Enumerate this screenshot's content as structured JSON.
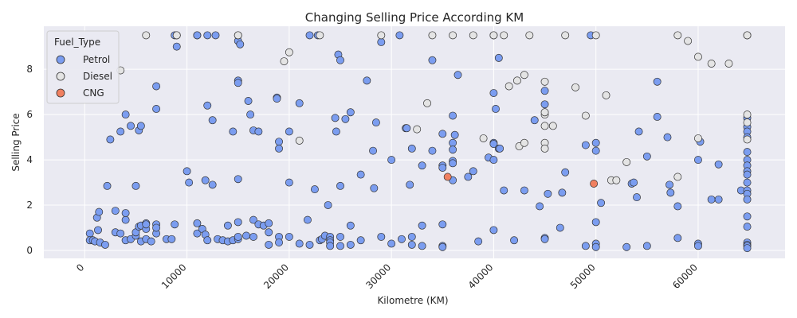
{
  "chart_data": {
    "type": "scatter",
    "title": "Changing Selling Price According KM",
    "xlabel": "Kilometre (KM)",
    "ylabel": "Selling Price",
    "xlim": [
      -4000,
      68500
    ],
    "ylim": [
      -0.35,
      9.9
    ],
    "xticks": [
      0,
      10000,
      20000,
      30000,
      40000,
      50000,
      60000
    ],
    "yticks": [
      0,
      2,
      4,
      6,
      8
    ],
    "grid": true,
    "legend": {
      "title": "Fuel_Type",
      "position": "top-left"
    },
    "series": [
      {
        "name": "Petrol",
        "color": "#7b9df0",
        "points": [
          [
            500,
            0.75
          ],
          [
            500,
            0.45
          ],
          [
            800,
            0.45
          ],
          [
            1000,
            0.4
          ],
          [
            1200,
            1.45
          ],
          [
            1300,
            0.9
          ],
          [
            1400,
            1.7
          ],
          [
            1500,
            0.35
          ],
          [
            2000,
            0.25
          ],
          [
            2200,
            2.85
          ],
          [
            2500,
            4.9
          ],
          [
            3000,
            1.75
          ],
          [
            3000,
            0.8
          ],
          [
            3500,
            0.75
          ],
          [
            3500,
            5.25
          ],
          [
            4000,
            6.0
          ],
          [
            4000,
            0.45
          ],
          [
            4000,
            1.35
          ],
          [
            4000,
            1.65
          ],
          [
            4500,
            0.5
          ],
          [
            4500,
            5.5
          ],
          [
            5000,
            0.65
          ],
          [
            5000,
            0.8
          ],
          [
            5000,
            2.85
          ],
          [
            5300,
            5.3
          ],
          [
            5300,
            1.05
          ],
          [
            5500,
            5.5
          ],
          [
            5500,
            1.1
          ],
          [
            5500,
            0.4
          ],
          [
            6000,
            0.95
          ],
          [
            6000,
            1.2
          ],
          [
            6000,
            1.15
          ],
          [
            6000,
            0.5
          ],
          [
            6500,
            0.4
          ],
          [
            7000,
            7.25
          ],
          [
            7000,
            6.25
          ],
          [
            7000,
            1.15
          ],
          [
            7000,
            0.75
          ],
          [
            7000,
            1.0
          ],
          [
            8000,
            0.5
          ],
          [
            8500,
            0.5
          ],
          [
            8800,
            9.5
          ],
          [
            8800,
            1.15
          ],
          [
            9000,
            9.0
          ],
          [
            9000,
            9.5
          ],
          [
            10000,
            3.5
          ],
          [
            10200,
            3.0
          ],
          [
            11000,
            9.5
          ],
          [
            11000,
            9.5
          ],
          [
            11000,
            1.2
          ],
          [
            11000,
            0.75
          ],
          [
            11500,
            0.95
          ],
          [
            11800,
            0.7
          ],
          [
            11800,
            3.1
          ],
          [
            12000,
            9.5
          ],
          [
            12000,
            0.45
          ],
          [
            12000,
            6.4
          ],
          [
            12500,
            2.9
          ],
          [
            12500,
            5.75
          ],
          [
            12800,
            9.5
          ],
          [
            13000,
            0.5
          ],
          [
            13500,
            0.45
          ],
          [
            14000,
            0.4
          ],
          [
            14000,
            1.1
          ],
          [
            14500,
            5.25
          ],
          [
            14500,
            0.45
          ],
          [
            15000,
            9.25
          ],
          [
            15000,
            9.5
          ],
          [
            15000,
            7.5
          ],
          [
            15000,
            7.4
          ],
          [
            15000,
            3.15
          ],
          [
            15000,
            1.25
          ],
          [
            15000,
            0.5
          ],
          [
            15000,
            0.6
          ],
          [
            15200,
            9.1
          ],
          [
            15800,
            0.65
          ],
          [
            16000,
            6.6
          ],
          [
            16200,
            6.0
          ],
          [
            16500,
            5.3
          ],
          [
            16500,
            1.35
          ],
          [
            16500,
            0.6
          ],
          [
            17000,
            5.25
          ],
          [
            17000,
            1.15
          ],
          [
            17500,
            1.1
          ],
          [
            18000,
            1.2
          ],
          [
            18000,
            0.8
          ],
          [
            18000,
            0.25
          ],
          [
            18800,
            6.75
          ],
          [
            18800,
            6.7
          ],
          [
            19000,
            4.8
          ],
          [
            19000,
            4.5
          ],
          [
            19000,
            0.6
          ],
          [
            19000,
            0.35
          ],
          [
            20000,
            5.25
          ],
          [
            20000,
            3.0
          ],
          [
            20000,
            0.6
          ],
          [
            21000,
            6.5
          ],
          [
            21000,
            0.3
          ],
          [
            21800,
            1.35
          ],
          [
            22000,
            9.5
          ],
          [
            22000,
            0.25
          ],
          [
            22500,
            2.7
          ],
          [
            22800,
            9.5
          ],
          [
            23000,
            0.45
          ],
          [
            23200,
            0.5
          ],
          [
            23500,
            0.65
          ],
          [
            23800,
            2.0
          ],
          [
            24000,
            0.6
          ],
          [
            24000,
            0.45
          ],
          [
            24000,
            0.35
          ],
          [
            24000,
            0.2
          ],
          [
            24500,
            5.85
          ],
          [
            24600,
            5.25
          ],
          [
            24800,
            8.65
          ],
          [
            25000,
            8.4
          ],
          [
            25000,
            2.85
          ],
          [
            25000,
            0.6
          ],
          [
            25000,
            0.2
          ],
          [
            25500,
            5.8
          ],
          [
            26000,
            6.1
          ],
          [
            26000,
            1.1
          ],
          [
            26000,
            0.25
          ],
          [
            27000,
            3.35
          ],
          [
            27000,
            0.45
          ],
          [
            27600,
            7.5
          ],
          [
            28200,
            4.4
          ],
          [
            28300,
            2.75
          ],
          [
            28500,
            5.65
          ],
          [
            29000,
            9.2
          ],
          [
            29000,
            0.6
          ],
          [
            30000,
            4.0
          ],
          [
            30000,
            0.3
          ],
          [
            30800,
            9.5
          ],
          [
            31000,
            0.5
          ],
          [
            31400,
            5.4
          ],
          [
            31500,
            5.4
          ],
          [
            31800,
            2.9
          ],
          [
            32000,
            4.5
          ],
          [
            32000,
            0.6
          ],
          [
            32000,
            0.25
          ],
          [
            33000,
            1.1
          ],
          [
            33000,
            0.2
          ],
          [
            33000,
            3.75
          ],
          [
            34000,
            4.4
          ],
          [
            34000,
            8.4
          ],
          [
            35000,
            5.15
          ],
          [
            35000,
            3.75
          ],
          [
            35000,
            3.65
          ],
          [
            35000,
            1.15
          ],
          [
            35000,
            0.2
          ],
          [
            35000,
            0.15
          ],
          [
            36000,
            4.75
          ],
          [
            36000,
            5.95
          ],
          [
            36000,
            4.45
          ],
          [
            36000,
            3.95
          ],
          [
            36000,
            3.85
          ],
          [
            36000,
            3.1
          ],
          [
            36500,
            7.75
          ],
          [
            36200,
            5.1
          ],
          [
            37500,
            3.25
          ],
          [
            38000,
            3.5
          ],
          [
            38500,
            0.4
          ],
          [
            39500,
            4.1
          ],
          [
            40000,
            4.75
          ],
          [
            40000,
            6.95
          ],
          [
            40000,
            4.7
          ],
          [
            40000,
            4.0
          ],
          [
            40000,
            0.9
          ],
          [
            40200,
            6.25
          ],
          [
            40500,
            8.5
          ],
          [
            40500,
            4.5
          ],
          [
            40600,
            4.5
          ],
          [
            41000,
            2.65
          ],
          [
            42000,
            0.45
          ],
          [
            43000,
            2.65
          ],
          [
            44000,
            5.75
          ],
          [
            44500,
            1.95
          ],
          [
            45000,
            7.05
          ],
          [
            45000,
            6.45
          ],
          [
            45000,
            0.55
          ],
          [
            45000,
            0.5
          ],
          [
            45300,
            2.5
          ],
          [
            46500,
            1.0
          ],
          [
            46700,
            2.55
          ],
          [
            47000,
            3.45
          ],
          [
            49000,
            4.65
          ],
          [
            49000,
            0.2
          ],
          [
            49500,
            9.5
          ],
          [
            50000,
            4.75
          ],
          [
            50000,
            4.4
          ],
          [
            50000,
            1.25
          ],
          [
            50000,
            0.3
          ],
          [
            50000,
            0.15
          ],
          [
            50500,
            2.1
          ],
          [
            53000,
            0.15
          ],
          [
            53500,
            2.95
          ],
          [
            53700,
            3.0
          ],
          [
            54000,
            2.35
          ],
          [
            54200,
            5.25
          ],
          [
            55000,
            4.15
          ],
          [
            55000,
            0.2
          ],
          [
            56000,
            5.9
          ],
          [
            56000,
            7.45
          ],
          [
            57000,
            5.0
          ],
          [
            57200,
            2.9
          ],
          [
            57300,
            2.55
          ],
          [
            58000,
            1.95
          ],
          [
            58000,
            0.55
          ],
          [
            60000,
            4.0
          ],
          [
            60000,
            0.3
          ],
          [
            60000,
            0.2
          ],
          [
            60200,
            4.8
          ],
          [
            61300,
            2.25
          ],
          [
            62000,
            2.25
          ],
          [
            62000,
            3.8
          ],
          [
            64200,
            2.65
          ],
          [
            64800,
            9.5
          ],
          [
            64800,
            5.85
          ],
          [
            64800,
            5.45
          ],
          [
            64800,
            5.25
          ],
          [
            64800,
            5.0
          ],
          [
            64800,
            4.35
          ],
          [
            64800,
            4.0
          ],
          [
            64800,
            3.75
          ],
          [
            64800,
            3.5
          ],
          [
            64800,
            3.35
          ],
          [
            64800,
            3.0
          ],
          [
            64800,
            2.65
          ],
          [
            64800,
            2.5
          ],
          [
            64800,
            2.25
          ],
          [
            64800,
            1.5
          ],
          [
            64800,
            1.05
          ],
          [
            64800,
            0.35
          ],
          [
            64800,
            0.25
          ],
          [
            64800,
            0.2
          ],
          [
            64800,
            0.1
          ]
        ]
      },
      {
        "name": "Diesel",
        "color": "#e4e4e4",
        "points": [
          [
            3500,
            7.95
          ],
          [
            6000,
            9.5
          ],
          [
            9000,
            9.5
          ],
          [
            15000,
            9.5
          ],
          [
            19500,
            8.35
          ],
          [
            20000,
            8.75
          ],
          [
            21000,
            4.85
          ],
          [
            23000,
            9.5
          ],
          [
            29000,
            9.5
          ],
          [
            32500,
            5.35
          ],
          [
            33500,
            6.5
          ],
          [
            34000,
            9.5
          ],
          [
            36000,
            9.5
          ],
          [
            38000,
            9.5
          ],
          [
            39000,
            4.95
          ],
          [
            40000,
            9.5
          ],
          [
            40000,
            9.5
          ],
          [
            41000,
            9.5
          ],
          [
            41500,
            7.25
          ],
          [
            42300,
            7.5
          ],
          [
            42500,
            4.6
          ],
          [
            43000,
            4.75
          ],
          [
            43000,
            7.75
          ],
          [
            43500,
            9.5
          ],
          [
            45000,
            7.45
          ],
          [
            45000,
            6.0
          ],
          [
            45000,
            6.1
          ],
          [
            45000,
            5.5
          ],
          [
            45000,
            4.75
          ],
          [
            45000,
            4.5
          ],
          [
            45800,
            5.5
          ],
          [
            47000,
            9.5
          ],
          [
            48000,
            7.2
          ],
          [
            49000,
            5.95
          ],
          [
            50000,
            9.5
          ],
          [
            51000,
            6.85
          ],
          [
            51500,
            3.1
          ],
          [
            52000,
            3.1
          ],
          [
            53000,
            3.9
          ],
          [
            58000,
            9.5
          ],
          [
            58000,
            3.25
          ],
          [
            59000,
            9.25
          ],
          [
            60000,
            8.55
          ],
          [
            60000,
            4.95
          ],
          [
            61300,
            8.25
          ],
          [
            63000,
            8.25
          ],
          [
            64800,
            9.5
          ],
          [
            64800,
            6.0
          ],
          [
            64800,
            5.65
          ],
          [
            64800,
            4.9
          ]
        ]
      },
      {
        "name": "CNG",
        "color": "#f08060",
        "points": [
          [
            35500,
            3.25
          ],
          [
            49800,
            2.95
          ]
        ]
      }
    ]
  }
}
